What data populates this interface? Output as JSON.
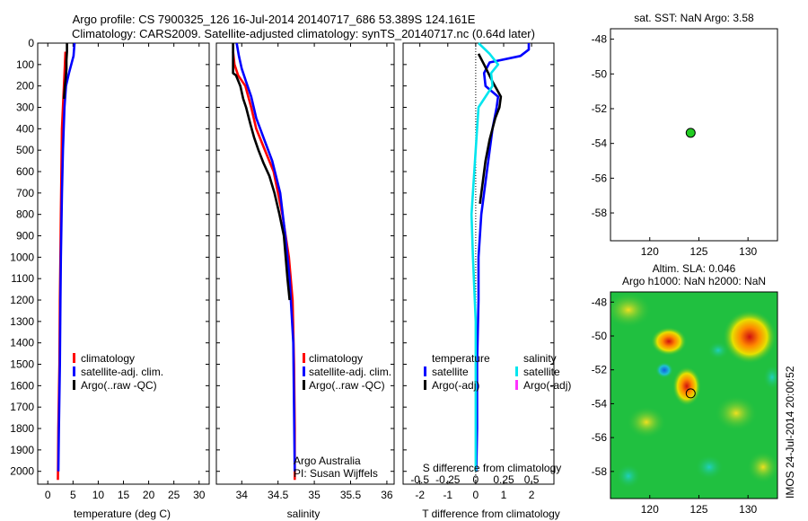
{
  "title_line1": "Argo profile: CS 7900325_126 16-Jul-2014 20140717_686 53.389S 124.161E",
  "title_line2": "Climatology: CARS2009. Satellite-adjusted climatology: synTS_20140717.nc (0.64d later)",
  "colors": {
    "climatology": "#ff0000",
    "satellite": "#0000ff",
    "argo": "#000000",
    "s_satellite": "#00e5ee",
    "s_argo": "#ff33ff"
  },
  "depth_ticks": [
    0,
    100,
    200,
    300,
    400,
    500,
    600,
    700,
    800,
    900,
    1000,
    1100,
    1200,
    1300,
    1400,
    1500,
    1600,
    1700,
    1800,
    1900,
    2000
  ],
  "chart_data": [
    {
      "type": "line",
      "id": "temperature",
      "xlabel": "temperature (deg C)",
      "xlim": [
        -2,
        32
      ],
      "ylim": [
        2060,
        0
      ],
      "xticks": [
        0,
        5,
        10,
        15,
        20,
        25,
        30
      ],
      "xtick_labels": [
        "0",
        "5",
        "10",
        "15",
        "20",
        "25",
        "30"
      ],
      "legend": [
        "climatology",
        "satellite-adj. clim.",
        "Argo(..raw -QC)"
      ],
      "series": [
        {
          "name": "climatology",
          "color": "#ff0000",
          "x": [
            3.5,
            3.4,
            3.2,
            3.0,
            2.8,
            2.7,
            2.6,
            2.5,
            2.4,
            2.3,
            2.1,
            2.0
          ],
          "y": [
            40,
            100,
            200,
            300,
            400,
            600,
            800,
            1000,
            1200,
            1500,
            1800,
            2040
          ]
        },
        {
          "name": "satellite-adj. clim.",
          "color": "#0000ff",
          "x": [
            5.3,
            5.1,
            4.2,
            3.6,
            3.3,
            3.0,
            2.8,
            2.6,
            2.5,
            2.4,
            2.2,
            2.1
          ],
          "y": [
            0,
            60,
            140,
            200,
            300,
            500,
            700,
            1000,
            1200,
            1500,
            1800,
            2000
          ]
        },
        {
          "name": "Argo(..raw -QC)",
          "color": "#000000",
          "x": [
            3.8,
            3.8,
            3.7,
            3.7,
            3.6,
            3.4,
            3.2
          ],
          "y": [
            0,
            40,
            80,
            120,
            150,
            200,
            260
          ]
        }
      ]
    },
    {
      "type": "line",
      "id": "salinity",
      "xlabel": "salinity",
      "xlim": [
        33.65,
        36.1
      ],
      "ylim": [
        2060,
        0
      ],
      "xticks": [
        34,
        34.5,
        35,
        35.5,
        36
      ],
      "xtick_labels": [
        "34",
        "34.5",
        "35",
        "35.5",
        "36"
      ],
      "legend": [
        "climatology",
        "satellite-adj. clim.",
        "Argo(..raw -QC)"
      ],
      "credit_line1": "Argo Australia",
      "credit_line2": "PI: Susan Wijffels",
      "series": [
        {
          "name": "climatology",
          "color": "#ff0000",
          "x": [
            33.88,
            33.9,
            33.95,
            34.05,
            34.13,
            34.2,
            34.32,
            34.44,
            34.56,
            34.65,
            34.7,
            34.72,
            34.73,
            34.73
          ],
          "y": [
            40,
            100,
            150,
            200,
            300,
            400,
            500,
            600,
            800,
            1000,
            1200,
            1500,
            1800,
            2040
          ]
        },
        {
          "name": "satellite-adj. clim.",
          "color": "#0000ff",
          "x": [
            33.93,
            33.96,
            34.0,
            34.06,
            34.13,
            34.2,
            34.31,
            34.42,
            34.53,
            34.6,
            34.66,
            34.71,
            34.72,
            34.73
          ],
          "y": [
            0,
            60,
            120,
            180,
            250,
            350,
            450,
            550,
            700,
            900,
            1100,
            1400,
            1700,
            2000
          ]
        },
        {
          "name": "Argo(..raw -QC)",
          "color": "#000000",
          "x": [
            33.88,
            33.88,
            33.92,
            33.98,
            34.02,
            34.06,
            34.12,
            34.17,
            34.23,
            34.3,
            34.38,
            34.45,
            34.52,
            34.58,
            34.63,
            34.66
          ],
          "y": [
            0,
            140,
            150,
            200,
            260,
            300,
            380,
            440,
            500,
            560,
            620,
            700,
            800,
            900,
            1100,
            1200
          ]
        }
      ]
    },
    {
      "type": "line",
      "id": "difference",
      "xlabel": "T difference from climatology",
      "xlabel_top": "S difference from climatology",
      "xlim": [
        -2.6,
        2.8
      ],
      "ylim": [
        2060,
        0
      ],
      "xticks": [
        -2,
        -1,
        0,
        1,
        2
      ],
      "xtick_labels": [
        "-2",
        "-1",
        "0",
        "1",
        "2"
      ],
      "s_ticks": [
        -0.5,
        -0.25,
        0,
        0.25,
        0.5
      ],
      "s_tick_labels": [
        "-0.5",
        "-0.25",
        "0",
        "0.25",
        "0.5"
      ],
      "legend_temperature_title": "temperature",
      "legend_salinity_title": "salinity",
      "legend_temperature": [
        "satellite",
        "Argo(-adj)"
      ],
      "legend_salinity": [
        "satellite",
        "Argo(-adj)"
      ],
      "series": [
        {
          "name": "T satellite",
          "color": "#0000ff",
          "x": [
            1.9,
            1.9,
            1.6,
            0.5,
            0.3,
            0.35,
            0.8,
            0.75,
            0.6,
            0.4,
            0.2,
            0.1,
            0.1,
            0.05,
            0.05,
            0.02
          ],
          "y": [
            0,
            30,
            60,
            90,
            140,
            200,
            250,
            300,
            400,
            600,
            800,
            1000,
            1200,
            1500,
            1800,
            2000
          ]
        },
        {
          "name": "T Argo(-adj)",
          "color": "#000000",
          "x": [
            0.1,
            0.3,
            0.6,
            0.9,
            0.85,
            0.7,
            0.5,
            0.35,
            0.25,
            0.15
          ],
          "y": [
            50,
            100,
            180,
            250,
            300,
            350,
            450,
            550,
            650,
            750
          ]
        },
        {
          "name": "S satellite",
          "color": "#00e5ee",
          "x": [
            0.1,
            0.5,
            0.8,
            0.55,
            0.6,
            0.35,
            0.1,
            0.05,
            -0.05,
            -0.15,
            -0.1,
            0.0,
            0.0,
            0.0
          ],
          "y": [
            0,
            50,
            100,
            140,
            200,
            250,
            300,
            400,
            600,
            800,
            1000,
            1300,
            1600,
            2000
          ]
        }
      ]
    },
    {
      "type": "scatter",
      "id": "sst-map",
      "title": "sat. SST: NaN Argo: 3.58",
      "xlim": [
        116,
        133
      ],
      "ylim": [
        -59.6,
        -47.4
      ],
      "xticks": [
        120,
        125,
        130
      ],
      "xtick_labels": [
        "120",
        "125",
        "130"
      ],
      "yticks": [
        -48,
        -50,
        -52,
        -54,
        -56,
        -58
      ],
      "ytick_labels": [
        "-48",
        "-50",
        "-52",
        "-54",
        "-56",
        "-58"
      ],
      "points": [
        {
          "x": 124.161,
          "y": -53.389,
          "color": "#22cc22"
        }
      ]
    },
    {
      "type": "heatmap",
      "id": "sla-map",
      "title_line1": "Altim. SLA: 0.046",
      "title_line2": "Argo h1000: NaN h2000: NaN",
      "side_label": "IMOS 24-Jul-2014 20:00:52",
      "xlim": [
        116,
        133
      ],
      "ylim": [
        -59.6,
        -47.4
      ],
      "xticks": [
        120,
        125,
        130
      ],
      "xtick_labels": [
        "120",
        "125",
        "130"
      ],
      "yticks": [
        -48,
        -50,
        -52,
        -54,
        -56,
        -58
      ],
      "ytick_labels": [
        "-48",
        "-50",
        "-52",
        "-54",
        "-56",
        "-58"
      ],
      "points": [
        {
          "x": 124.161,
          "y": -53.389
        }
      ]
    }
  ]
}
